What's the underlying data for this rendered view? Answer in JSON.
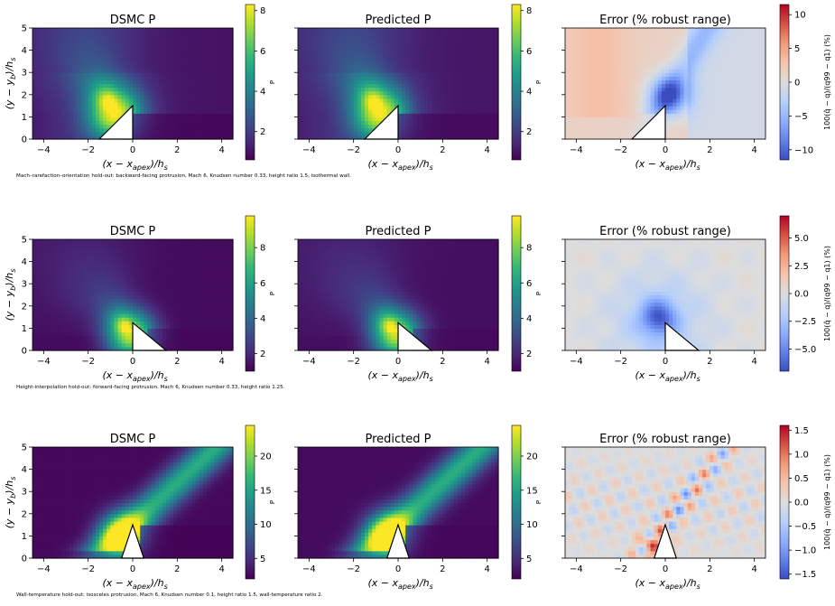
{
  "chart_data": [
    {
      "type": "heatmap",
      "row": 0,
      "caption": "Mach–rarefaction–orientation hold-out: backward-facing protrusion, Mach 6, Knudsen number 0.33, height ratio 1.5, isothermal wall.",
      "body": {
        "kind": "triangle",
        "points": [
          [
            -1.5,
            0
          ],
          [
            0,
            1.5
          ],
          [
            0,
            0
          ]
        ]
      },
      "xlabel": "(x − x_apex)/h_s",
      "ylabel": "(y − y_b)/h_s",
      "xlim": [
        -4.5,
        4.5
      ],
      "ylim": [
        0,
        5
      ],
      "xticks": [
        "−4",
        "−2",
        "0",
        "2",
        "4"
      ],
      "yticks": [
        "0",
        "1",
        "2",
        "3",
        "4",
        "5"
      ],
      "panels": [
        {
          "title": "DSMC P",
          "field": "pressure",
          "colormap": "viridis",
          "clim": [
            0.6,
            8.3
          ],
          "cbar_ticks": [
            "2",
            "4",
            "6",
            "8"
          ],
          "cbar_label": "P"
        },
        {
          "title": "Predicted P",
          "field": "pressure",
          "colormap": "viridis",
          "clim": [
            0.6,
            8.3
          ],
          "cbar_ticks": [
            "2",
            "4",
            "6",
            "8"
          ],
          "cbar_label": "P"
        },
        {
          "title": "Error (% robust range)",
          "field": "error",
          "colormap": "coolwarm",
          "clim": [
            -11.5,
            11.5
          ],
          "cbar_ticks": [
            "−10",
            "−5",
            "0",
            "5",
            "10"
          ],
          "cbar_label": "100(q̂ − q)/(q99 − q1) (%)"
        }
      ]
    },
    {
      "type": "heatmap",
      "row": 1,
      "caption": "Height-interpolation hold-out: forward-facing protrusion, Mach 6, Knudsen number 0.33, height ratio 1.25.",
      "body": {
        "kind": "triangle",
        "points": [
          [
            0,
            1.25
          ],
          [
            1.5,
            0
          ],
          [
            0,
            0
          ]
        ]
      },
      "xlabel": "(x − x_apex)/h_s",
      "ylabel": "(y − y_b)/h_s",
      "xlim": [
        -4.5,
        4.5
      ],
      "ylim": [
        0,
        5
      ],
      "xticks": [
        "−4",
        "−2",
        "0",
        "2",
        "4"
      ],
      "yticks": [
        "0",
        "1",
        "2",
        "3",
        "4",
        "5"
      ],
      "panels": [
        {
          "title": "DSMC P",
          "field": "pressure",
          "colormap": "viridis",
          "clim": [
            1.0,
            9.8
          ],
          "cbar_ticks": [
            "2",
            "4",
            "6",
            "8"
          ],
          "cbar_label": "P"
        },
        {
          "title": "Predicted P",
          "field": "pressure",
          "colormap": "viridis",
          "clim": [
            1.0,
            9.8
          ],
          "cbar_ticks": [
            "2",
            "4",
            "6",
            "8"
          ],
          "cbar_label": "P"
        },
        {
          "title": "Error (% robust range)",
          "field": "error",
          "colormap": "coolwarm",
          "clim": [
            -7.0,
            7.0
          ],
          "cbar_ticks": [
            "−5.0",
            "−2.5",
            "0.0",
            "2.5",
            "5.0"
          ],
          "cbar_label": "100(q̂ − q)/(q99 − q1) (%)"
        }
      ]
    },
    {
      "type": "heatmap",
      "row": 2,
      "caption": "Wall-temperature hold-out: isosceles protrusion, Mach 6, Knudsen number 0.1, height ratio 1.5, wall-temperature ratio 2.",
      "body": {
        "kind": "triangle",
        "points": [
          [
            -0.5,
            0
          ],
          [
            0,
            1.5
          ],
          [
            0.5,
            0
          ]
        ]
      },
      "xlabel": "(x − x_apex)/h_s",
      "ylabel": "(y − y_b)/h_s",
      "xlim": [
        -4.5,
        4.5
      ],
      "ylim": [
        0,
        5
      ],
      "xticks": [
        "−4",
        "−2",
        "0",
        "2",
        "4"
      ],
      "yticks": [
        "0",
        "1",
        "2",
        "3",
        "4",
        "5"
      ],
      "panels": [
        {
          "title": "DSMC P",
          "field": "pressure",
          "colormap": "viridis",
          "clim": [
            2.0,
            24.5
          ],
          "cbar_ticks": [
            "5",
            "10",
            "15",
            "20"
          ],
          "cbar_label": "P"
        },
        {
          "title": "Predicted P",
          "field": "pressure",
          "colormap": "viridis",
          "clim": [
            2.0,
            24.5
          ],
          "cbar_ticks": [
            "5",
            "10",
            "15",
            "20"
          ],
          "cbar_label": "P"
        },
        {
          "title": "Error (% robust range)",
          "field": "error",
          "colormap": "coolwarm",
          "clim": [
            -1.6,
            1.6
          ],
          "cbar_ticks": [
            "−1.5",
            "−1.0",
            "−0.5",
            "0.0",
            "0.5",
            "1.0",
            "1.5"
          ],
          "cbar_label": "100(q̂ − q)/(q99 − q1) (%)"
        }
      ]
    }
  ]
}
